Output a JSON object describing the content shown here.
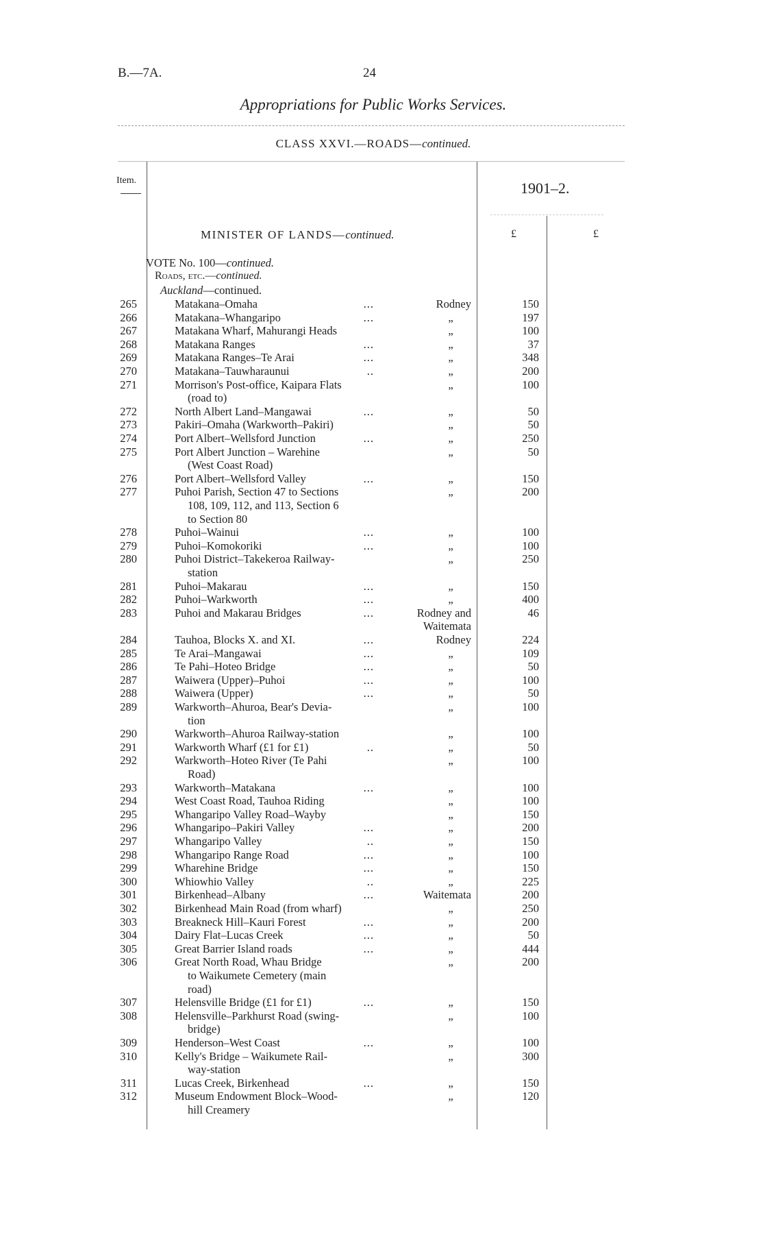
{
  "header": {
    "code": "B.—7A.",
    "page_number": "24",
    "title": "Appropriations for Public Works Services.",
    "class_title": "CLASS XXVI.—ROADS—",
    "class_cont": "continued."
  },
  "table_header": {
    "item_label": "Item.",
    "year": "1901–2.",
    "currency_1": "£",
    "currency_2": "£"
  },
  "section": {
    "minister": "MINISTER OF LANDS—",
    "minister_cont": "continued.",
    "vote": "VOTE No. 100—",
    "vote_cont": "continued.",
    "roads": "Roads, etc.—",
    "roads_cont": "continued.",
    "region": "Auckland",
    "region_cont": "—continued."
  },
  "rows": [
    {
      "item": "265",
      "name": "Matakana–Omaha",
      "cont": [],
      "leader": "...",
      "district": "Rodney",
      "amount": "150"
    },
    {
      "item": "266",
      "name": "Matakana–Whangaripo",
      "cont": [],
      "leader": "...",
      "district": "„",
      "amount": "197"
    },
    {
      "item": "267",
      "name": "Matakana Wharf, Mahurangi Heads",
      "cont": [],
      "leader": "",
      "district": "„",
      "amount": "100"
    },
    {
      "item": "268",
      "name": "Matakana Ranges",
      "cont": [],
      "leader": "...",
      "district": "„",
      "amount": "37"
    },
    {
      "item": "269",
      "name": "Matakana Ranges–Te Arai",
      "cont": [],
      "leader": "...",
      "district": "„",
      "amount": "348"
    },
    {
      "item": "270",
      "name": "Matakana–Tauwharaunui",
      "cont": [],
      "leader": "..",
      "district": "„",
      "amount": "200"
    },
    {
      "item": "271",
      "name": "Morrison's Post-office, Kaipara Flats",
      "cont": [
        "(road to)"
      ],
      "leader": "",
      "district": "„",
      "amount": "100"
    },
    {
      "item": "272",
      "name": "North Albert Land–Mangawai",
      "cont": [],
      "leader": "...",
      "district": "„",
      "amount": "50"
    },
    {
      "item": "273",
      "name": "Pakiri–Omaha (Warkworth–Pakiri)",
      "cont": [],
      "leader": "",
      "district": "„",
      "amount": "50"
    },
    {
      "item": "274",
      "name": "Port Albert–Wellsford Junction",
      "cont": [],
      "leader": "...",
      "district": "„",
      "amount": "250"
    },
    {
      "item": "275",
      "name": "Port  Albert  Junction – Warehine",
      "cont": [
        "(West Coast Road)"
      ],
      "leader": "",
      "district": "„",
      "amount": "50"
    },
    {
      "item": "276",
      "name": "Port Albert–Wellsford Valley",
      "cont": [],
      "leader": "...",
      "district": "„",
      "amount": "150"
    },
    {
      "item": "277",
      "name": "Puhoi Parish, Section 47 to Sections",
      "cont": [
        "108, 109, 112, and 113, Section 6",
        "to Section 80"
      ],
      "leader": "",
      "district": "„",
      "amount": "200"
    },
    {
      "item": "278",
      "name": "Puhoi–Wainui",
      "cont": [],
      "leader": "...",
      "district": "„",
      "amount": "100"
    },
    {
      "item": "279",
      "name": "Puhoi–Komokoriki",
      "cont": [],
      "leader": "...",
      "district": "„",
      "amount": "100"
    },
    {
      "item": "280",
      "name": "Puhoi District–Takekeroa Railway-",
      "cont": [
        "station"
      ],
      "leader": "",
      "district": "„",
      "amount": "250"
    },
    {
      "item": "281",
      "name": "Puhoi–Makarau",
      "cont": [],
      "leader": "...",
      "district": "„",
      "amount": "150"
    },
    {
      "item": "282",
      "name": "Puhoi–Warkworth",
      "cont": [],
      "leader": "...",
      "district": "„",
      "amount": "400"
    },
    {
      "item": "283",
      "name": "Puhoi and Makarau Bridges",
      "cont": [],
      "leader": "...",
      "district": "Rodney and",
      "district_cont": "Waitemata",
      "amount": "46"
    },
    {
      "item": "284",
      "name": "Tauhoa, Blocks X. and XI.",
      "cont": [],
      "leader": "...",
      "district": "Rodney",
      "amount": "224"
    },
    {
      "item": "285",
      "name": "Te Arai–Mangawai",
      "cont": [],
      "leader": "...",
      "district": "„",
      "amount": "109"
    },
    {
      "item": "286",
      "name": "Te Pahi–Hoteo Bridge",
      "cont": [],
      "leader": "...",
      "district": "„",
      "amount": "50"
    },
    {
      "item": "287",
      "name": "Waiwera (Upper)–Puhoi",
      "cont": [],
      "leader": "...",
      "district": "„",
      "amount": "100"
    },
    {
      "item": "288",
      "name": "Waiwera (Upper)",
      "cont": [],
      "leader": "...",
      "district": "„",
      "amount": "50"
    },
    {
      "item": "289",
      "name": "Warkworth–Ahuroa, Bear's Devia-",
      "cont": [
        "tion"
      ],
      "leader": "",
      "district": "„",
      "amount": "100"
    },
    {
      "item": "290",
      "name": "Warkworth–Ahuroa Railway-station",
      "cont": [],
      "leader": "",
      "district": "„",
      "amount": "100"
    },
    {
      "item": "291",
      "name": "Warkworth Wharf (£1 for £1)",
      "cont": [],
      "leader": "..",
      "district": "„",
      "amount": "50"
    },
    {
      "item": "292",
      "name": "Warkworth–Hoteo River (Te Pahi",
      "cont": [
        "Road)"
      ],
      "leader": "",
      "district": "„",
      "amount": "100"
    },
    {
      "item": "293",
      "name": "Warkworth–Matakana",
      "cont": [],
      "leader": "...",
      "district": "„",
      "amount": "100"
    },
    {
      "item": "294",
      "name": "West Coast Road, Tauhoa Riding",
      "cont": [],
      "leader": "",
      "district": "„",
      "amount": "100"
    },
    {
      "item": "295",
      "name": "Whangaripo Valley Road–Wayby",
      "cont": [],
      "leader": "",
      "district": "„",
      "amount": "150"
    },
    {
      "item": "296",
      "name": "Whangaripo–Pakiri Valley",
      "cont": [],
      "leader": "...",
      "district": "„",
      "amount": "200"
    },
    {
      "item": "297",
      "name": "Whangaripo Valley",
      "cont": [],
      "leader": "..",
      "district": "„",
      "amount": "150"
    },
    {
      "item": "298",
      "name": "Whangaripo Range Road",
      "cont": [],
      "leader": "...",
      "district": "„",
      "amount": "100"
    },
    {
      "item": "299",
      "name": "Wharehine Bridge",
      "cont": [],
      "leader": "...",
      "district": "„",
      "amount": "150"
    },
    {
      "item": "300",
      "name": "Whiowhio Valley",
      "cont": [],
      "leader": "..",
      "district": "„",
      "amount": "225"
    },
    {
      "item": "301",
      "name": "Birkenhead–Albany",
      "cont": [],
      "leader": "...",
      "district": "Waitemata",
      "amount": "200"
    },
    {
      "item": "302",
      "name": "Birkenhead Main Road (from wharf)",
      "cont": [],
      "leader": "",
      "district": "„",
      "amount": "250"
    },
    {
      "item": "303",
      "name": "Breakneck Hill–Kauri Forest",
      "cont": [],
      "leader": "...",
      "district": "„",
      "amount": "200"
    },
    {
      "item": "304",
      "name": "Dairy Flat–Lucas Creek",
      "cont": [],
      "leader": "...",
      "district": "„",
      "amount": "50"
    },
    {
      "item": "305",
      "name": "Great Barrier Island roads",
      "cont": [],
      "leader": "...",
      "district": "„",
      "amount": "444"
    },
    {
      "item": "306",
      "name": "Great  North  Road,  Whau  Bridge",
      "cont": [
        "to  Waikumete  Cemetery  (main",
        "road)"
      ],
      "leader": "",
      "district": "„",
      "amount": "200"
    },
    {
      "item": "307",
      "name": "Helensville Bridge (£1 for £1)",
      "cont": [],
      "leader": "...",
      "district": "„",
      "amount": "150"
    },
    {
      "item": "308",
      "name": "Helensville–Parkhurst Road (swing-",
      "cont": [
        "bridge)"
      ],
      "leader": "",
      "district": "„",
      "amount": "100"
    },
    {
      "item": "309",
      "name": "Henderson–West Coast",
      "cont": [],
      "leader": "...",
      "district": "„",
      "amount": "100"
    },
    {
      "item": "310",
      "name": "Kelly's  Bridge – Waikumete  Rail-",
      "cont": [
        "way-station"
      ],
      "leader": "",
      "district": "„",
      "amount": "300"
    },
    {
      "item": "311",
      "name": "Lucas Creek, Birkenhead",
      "cont": [],
      "leader": "...",
      "district": "„",
      "amount": "150"
    },
    {
      "item": "312",
      "name": "Museum Endowment Block–Wood-",
      "cont": [
        "hill Creamery"
      ],
      "leader": "",
      "district": "„",
      "amount": "120"
    }
  ]
}
